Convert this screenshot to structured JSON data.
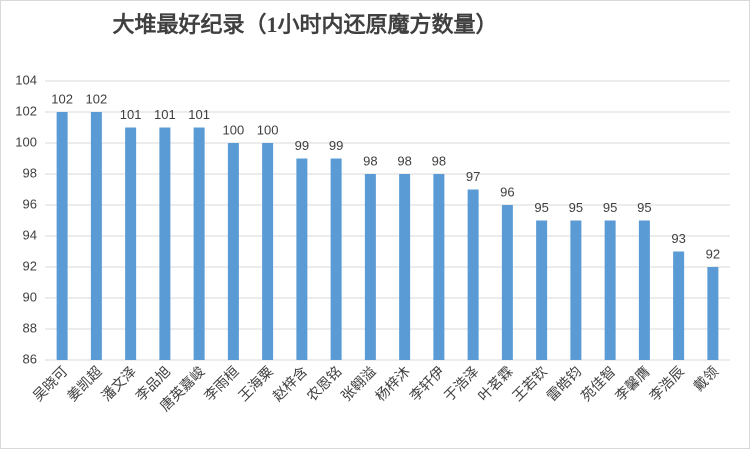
{
  "chart_data": {
    "type": "bar",
    "title": "大堆最好纪录（1小时内还原魔方数量）",
    "categories": [
      "吴晓可",
      "姜凯超",
      "潘文泽",
      "李品旭",
      "唐英嘉峻",
      "李雨桓",
      "王海粟",
      "赵梓含",
      "农恩铭",
      "张翱溢",
      "杨梓沐",
      "李轩伊",
      "于浩泽",
      "叶茗霖",
      "王若钦",
      "雷皓钧",
      "苑佳智",
      "李馨膺",
      "李浩辰",
      "戴领"
    ],
    "values": [
      102,
      102,
      101,
      101,
      101,
      100,
      100,
      99,
      99,
      98,
      98,
      98,
      97,
      96,
      95,
      95,
      95,
      95,
      93,
      92
    ],
    "color": "#5b9bd5",
    "ylim": [
      86,
      104
    ],
    "yticks": [
      86,
      88,
      90,
      92,
      94,
      96,
      98,
      100,
      102,
      104
    ],
    "grid": true
  }
}
